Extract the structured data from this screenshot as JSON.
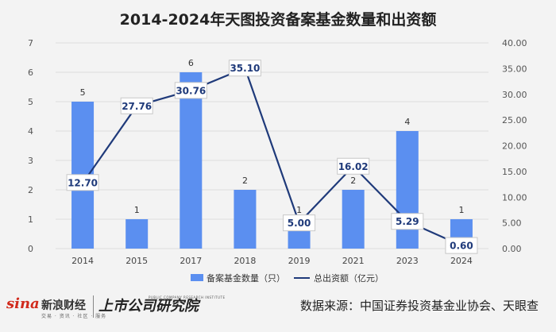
{
  "chart_data": {
    "type": "bar",
    "title": "2014-2024年天图投资备案基金数量和出资额",
    "categories": [
      "2014",
      "2015",
      "2017",
      "2018",
      "2019",
      "2021",
      "2023",
      "2024"
    ],
    "series": [
      {
        "name": "备案基金数量（只）",
        "type": "bar",
        "axis": "left",
        "values": [
          5,
          1,
          6,
          2,
          1,
          2,
          4,
          1
        ],
        "color": "#5b8ff0"
      },
      {
        "name": "总出资额（亿元）",
        "type": "line",
        "axis": "right",
        "values": [
          12.7,
          27.76,
          30.76,
          35.1,
          5.0,
          16.02,
          5.29,
          0.6
        ],
        "color": "#1f3a7a"
      }
    ],
    "y_left": {
      "min": 0,
      "max": 7,
      "ticks": [
        "0",
        "1",
        "2",
        "3",
        "4",
        "5",
        "6",
        "7"
      ]
    },
    "y_right": {
      "min": 0,
      "max": 40,
      "ticks": [
        "0.00",
        "5.00",
        "10.00",
        "15.00",
        "20.00",
        "25.00",
        "30.00",
        "35.00",
        "40.00"
      ]
    },
    "grid": true,
    "legend_position": "bottom"
  },
  "footer": {
    "source": "数据来源：中国证券投资基金业协会、天眼查",
    "brand_sina": "sina",
    "brand_name": "新浪财经",
    "brand_sub": "交易 · 资讯 · 社区 · 服务",
    "brand_logo2": "上市公司研究院",
    "brand_logo2_sub": "PUBLIC COMPANY RESEARCH INSTITUTE"
  }
}
